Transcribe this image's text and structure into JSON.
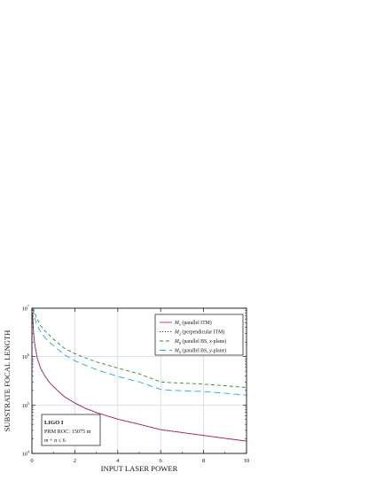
{
  "chart_data": {
    "type": "line",
    "xlabel": "INPUT LASER POWER",
    "ylabel": "SUBSTRATE FOCAL LENGTH",
    "xlim": [
      0,
      10
    ],
    "ylim": [
      10000,
      10000000
    ],
    "yscale": "log",
    "grid": true,
    "x_ticks": [
      {
        "value": 0,
        "label": "0"
      },
      {
        "value": 2,
        "label": "2"
      },
      {
        "value": 4,
        "label": "4"
      },
      {
        "value": 6,
        "label": "6"
      },
      {
        "value": 8,
        "label": "8"
      },
      {
        "value": 10,
        "label": "10"
      }
    ],
    "y_ticks": [
      {
        "value": 10000,
        "base": "10",
        "exp": "4"
      },
      {
        "value": 100000,
        "base": "10",
        "exp": "5"
      },
      {
        "value": 1000000,
        "base": "10",
        "exp": "6"
      },
      {
        "value": 10000000,
        "base": "10",
        "exp": "7"
      }
    ],
    "legend_position": "top-right",
    "series": [
      {
        "label_main": "M",
        "label_sub": "1",
        "label_rest": " (parallel ITM)",
        "color": "#d0284c",
        "dash": "none",
        "points": [
          [
            0.03,
            8000000
          ],
          [
            0.06,
            4000000
          ],
          [
            0.1,
            2300000
          ],
          [
            0.15,
            1600000
          ],
          [
            0.25,
            930000
          ],
          [
            0.4,
            580000
          ],
          [
            0.6,
            400000
          ],
          [
            0.8,
            300000
          ],
          [
            1.0,
            240000
          ],
          [
            1.5,
            150000
          ],
          [
            2.0,
            110000
          ],
          [
            2.5,
            85000
          ],
          [
            3.0,
            70000
          ],
          [
            4.0,
            51000
          ],
          [
            5.0,
            40000
          ],
          [
            6.0,
            31000
          ],
          [
            7.0,
            27000
          ],
          [
            8.0,
            23500
          ],
          [
            9.0,
            20500
          ],
          [
            10.0,
            18000
          ]
        ]
      },
      {
        "label_main": "M",
        "label_sub": "2",
        "label_rest": " (perpendicular ITM)",
        "color": "#3a2f8c",
        "dash": "1.2,1.8",
        "points": [
          [
            0.03,
            8000000
          ],
          [
            0.06,
            4000000
          ],
          [
            0.1,
            2300000
          ],
          [
            0.15,
            1600000
          ],
          [
            0.25,
            930000
          ],
          [
            0.4,
            580000
          ],
          [
            0.6,
            400000
          ],
          [
            0.8,
            300000
          ],
          [
            1.0,
            240000
          ],
          [
            1.5,
            150000
          ],
          [
            2.0,
            110000
          ],
          [
            2.5,
            85000
          ],
          [
            3.0,
            70000
          ],
          [
            4.0,
            51000
          ],
          [
            5.0,
            40000
          ],
          [
            6.0,
            31000
          ],
          [
            7.0,
            27000
          ],
          [
            8.0,
            23500
          ],
          [
            9.0,
            20500
          ],
          [
            10.0,
            18000
          ]
        ]
      },
      {
        "label_main": "M",
        "label_sub": "8",
        "label_rest": " (parallel BS, ",
        "label_ital": "x",
        "label_end": "-plane)",
        "color": "#2e8b2e",
        "dash": "4,3",
        "points": [
          [
            0.03,
            10000000
          ],
          [
            0.1,
            9000000
          ],
          [
            0.2,
            6500000
          ],
          [
            0.4,
            4400000
          ],
          [
            0.6,
            3400000
          ],
          [
            0.8,
            2800000
          ],
          [
            1.0,
            2300000
          ],
          [
            1.5,
            1500000
          ],
          [
            2.0,
            1150000
          ],
          [
            2.5,
            940000
          ],
          [
            3.0,
            780000
          ],
          [
            4.0,
            580000
          ],
          [
            5.0,
            440000
          ],
          [
            6.0,
            300000
          ],
          [
            6.5,
            290000
          ],
          [
            7.0,
            285000
          ],
          [
            8.0,
            270000
          ],
          [
            9.0,
            250000
          ],
          [
            10.0,
            230000
          ]
        ]
      },
      {
        "label_main": "M",
        "label_sub": "9",
        "label_rest": " (parallel BS, ",
        "label_ital": "y",
        "label_end": "-plane)",
        "color": "#2aa6dc",
        "dash": "7,4",
        "points": [
          [
            0.03,
            10000000
          ],
          [
            0.1,
            7500000
          ],
          [
            0.2,
            4800000
          ],
          [
            0.4,
            3300000
          ],
          [
            0.6,
            2500000
          ],
          [
            0.8,
            2000000
          ],
          [
            1.0,
            1700000
          ],
          [
            1.5,
            1100000
          ],
          [
            2.0,
            820000
          ],
          [
            2.5,
            660000
          ],
          [
            3.0,
            540000
          ],
          [
            4.0,
            390000
          ],
          [
            5.0,
            300000
          ],
          [
            6.0,
            210000
          ],
          [
            6.5,
            200000
          ],
          [
            7.0,
            198000
          ],
          [
            8.0,
            190000
          ],
          [
            9.0,
            175000
          ],
          [
            10.0,
            160000
          ]
        ]
      }
    ],
    "annotation": {
      "title": "LIGO I",
      "line2": "PRM ROC: 15075 m",
      "line3_a": "m",
      "line3_b": " + ",
      "line3_c": "n",
      "line3_d": " ≤ 6"
    }
  }
}
